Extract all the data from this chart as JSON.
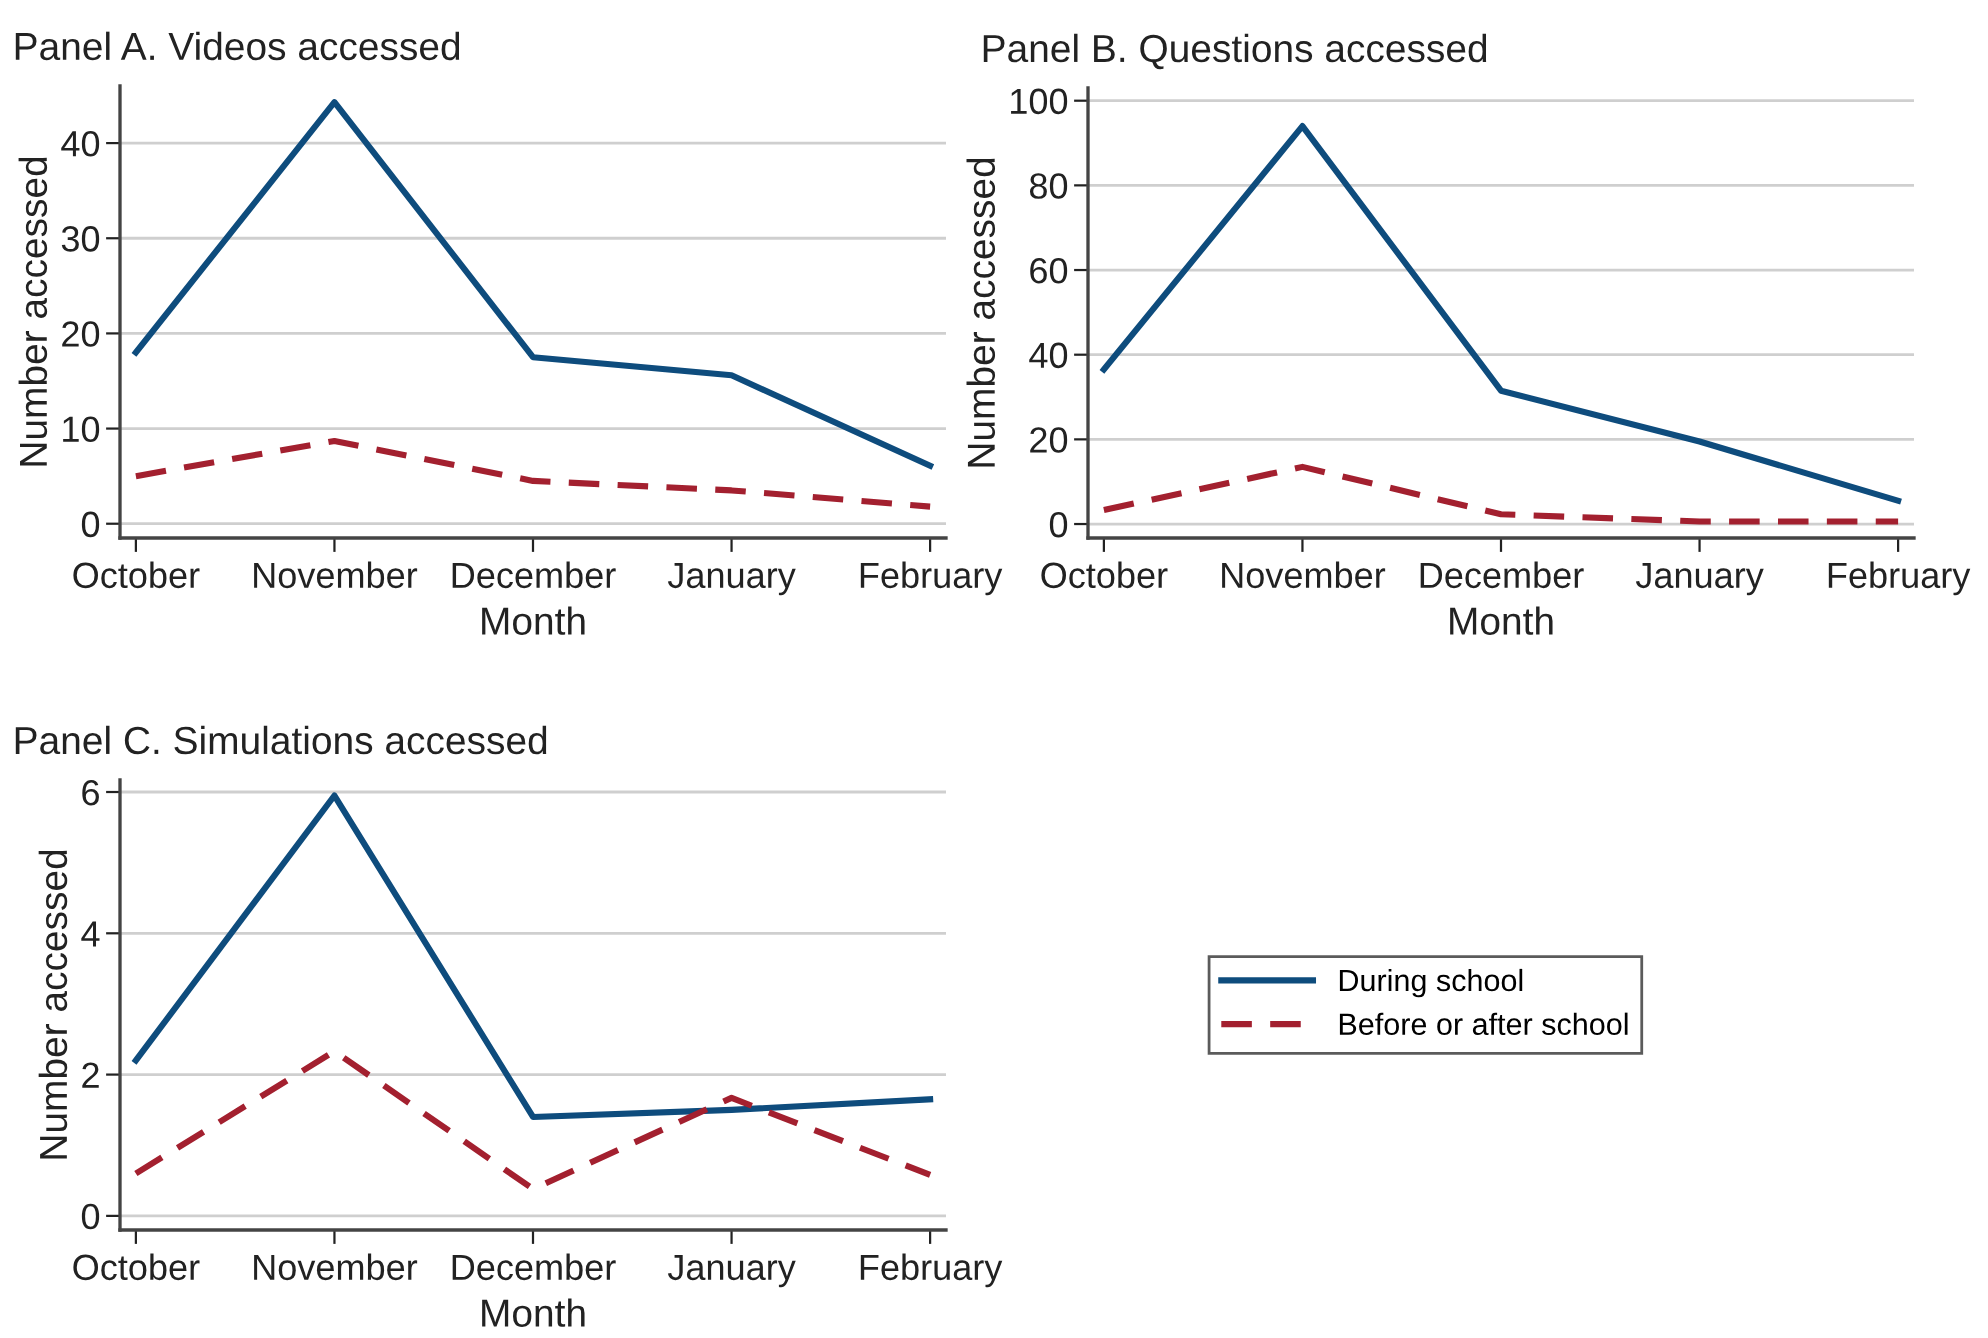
{
  "chart_data": [
    {
      "type": "line",
      "title": "Panel A. Videos accessed",
      "xlabel": "Month",
      "ylabel": "Number accessed",
      "categories": [
        "October",
        "November",
        "December",
        "January",
        "February"
      ],
      "ylim": [
        -1.5,
        46
      ],
      "yticks": [
        0,
        10,
        20,
        30,
        40
      ],
      "grid": "y",
      "legend": false,
      "series": [
        {
          "color": "#0e4c7d",
          "line_style": "solid",
          "values": [
            18,
            44.3,
            17.5,
            15.6,
            6.1
          ]
        },
        {
          "color": "#a3202f",
          "line_style": "dashed",
          "values": [
            5,
            8.7,
            4.5,
            3.5,
            1.8
          ]
        }
      ]
    },
    {
      "type": "line",
      "title": "Panel B. Questions accessed",
      "xlabel": "Month",
      "ylabel": "Number accessed",
      "categories": [
        "October",
        "November",
        "December",
        "January",
        "February"
      ],
      "ylim": [
        -3.3,
        103
      ],
      "yticks": [
        0,
        20,
        40,
        60,
        80,
        100
      ],
      "grid": "y",
      "legend": false,
      "series": [
        {
          "color": "#0e4c7d",
          "line_style": "solid",
          "values": [
            36.5,
            94,
            31.5,
            19.5,
            5.5
          ]
        },
        {
          "color": "#a3202f",
          "line_style": "dashed",
          "values": [
            3.3,
            13.5,
            2.3,
            0.6,
            0.6
          ]
        }
      ]
    },
    {
      "type": "line",
      "title": "Panel C. Simulations accessed",
      "xlabel": "Month",
      "ylabel": "Number accessed",
      "categories": [
        "October",
        "November",
        "December",
        "January",
        "February"
      ],
      "ylim": [
        -0.2,
        6.17
      ],
      "yticks": [
        0,
        2,
        4,
        6
      ],
      "grid": "y",
      "legend": "right",
      "series": [
        {
          "name": "During school",
          "color": "#0e4c7d",
          "line_style": "solid",
          "values": [
            2.2,
            5.95,
            1.4,
            1.5,
            1.65
          ]
        },
        {
          "name": "Before or after school",
          "color": "#a3202f",
          "line_style": "dashed",
          "values": [
            0.6,
            2.33,
            0.38,
            1.67,
            0.58
          ]
        }
      ]
    }
  ]
}
